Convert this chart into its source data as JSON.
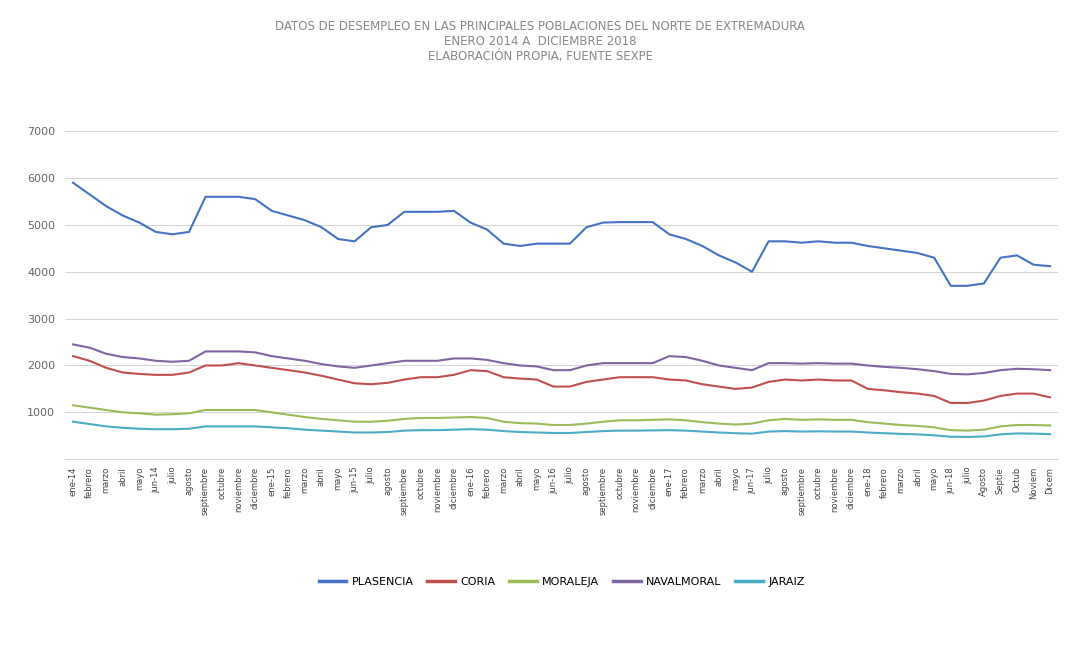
{
  "title": "DATOS DE DESEMPLEO EN LAS PRINCIPALES POBLACIONES DEL NORTE DE EXTREMADURA\nENERO 2014 A  DICIEMBRE 2018\nELABORACIÓN PROPIA, FUENTE SEXPE",
  "legend": [
    "PLASENCIA",
    "CORIA",
    "MORALEJA",
    "NAVALMORAL",
    "JARAIZ"
  ],
  "colors": {
    "PLASENCIA": "#4472C4",
    "CORIA": "#C0504D",
    "MORALEJA": "#9BBB59",
    "NAVALMORAL": "#8064A2",
    "JARAIZ": "#4BACC6"
  },
  "x_labels": [
    "ene-14",
    "febrero",
    "marzo",
    "abril",
    "mayo",
    "jun-14",
    "julio",
    "agosto",
    "septiembre",
    "octubre",
    "noviembre",
    "diciembre",
    "ene-15",
    "febrero",
    "marzo",
    "abril",
    "mayo",
    "jun-15",
    "julio",
    "agosto",
    "septiembre",
    "octubre",
    "noviembre",
    "diciembre",
    "ene-16",
    "febrero",
    "marzo",
    "abril",
    "mayo",
    "jun-16",
    "julio",
    "agosto",
    "septiembre",
    "octubre",
    "noviembre",
    "diciembre",
    "ene-17",
    "febrero",
    "marzo",
    "abril",
    "mayo",
    "jun-17",
    "julio",
    "agosto",
    "septiembre",
    "octubre",
    "noviembre",
    "diciembre",
    "ene-18",
    "febrero",
    "marzo",
    "abril",
    "mayo",
    "jun-18",
    "julio",
    "Agosto",
    "Septie",
    "Octub",
    "Noviem",
    "Dicem"
  ],
  "ylim": [
    0,
    7000
  ],
  "yticks": [
    0,
    1000,
    2000,
    3000,
    4000,
    5000,
    6000,
    7000
  ],
  "PLASENCIA": [
    5900,
    5650,
    5400,
    5200,
    5050,
    4850,
    4800,
    4850,
    5600,
    5600,
    5600,
    5550,
    5300,
    5200,
    5100,
    4950,
    4700,
    4650,
    4950,
    5000,
    5280,
    5280,
    5280,
    5300,
    5050,
    4900,
    4600,
    4550,
    4600,
    4600,
    4600,
    4950,
    5050,
    5060,
    5060,
    5060,
    4800,
    4700,
    4550,
    4350,
    4200,
    4000,
    4650,
    4650,
    4620,
    4650,
    4620,
    4620,
    4550,
    4500,
    4450,
    4400,
    4300,
    3700,
    3700,
    3750,
    4300,
    4350,
    4150,
    4120
  ],
  "CORIA": [
    2200,
    2100,
    1950,
    1850,
    1820,
    1800,
    1800,
    1850,
    2000,
    2000,
    2050,
    2000,
    1950,
    1900,
    1850,
    1780,
    1700,
    1620,
    1600,
    1630,
    1700,
    1750,
    1750,
    1800,
    1900,
    1880,
    1750,
    1720,
    1700,
    1550,
    1550,
    1650,
    1700,
    1750,
    1750,
    1750,
    1700,
    1680,
    1600,
    1550,
    1500,
    1530,
    1650,
    1700,
    1680,
    1700,
    1680,
    1680,
    1500,
    1470,
    1430,
    1400,
    1350,
    1200,
    1200,
    1250,
    1350,
    1400,
    1400,
    1320
  ],
  "MORALEJA": [
    1150,
    1100,
    1050,
    1000,
    980,
    950,
    960,
    980,
    1050,
    1050,
    1050,
    1050,
    1000,
    950,
    900,
    860,
    830,
    800,
    800,
    820,
    860,
    880,
    880,
    890,
    900,
    880,
    800,
    770,
    760,
    730,
    730,
    760,
    800,
    830,
    830,
    840,
    850,
    830,
    790,
    760,
    740,
    760,
    830,
    860,
    840,
    850,
    840,
    840,
    790,
    760,
    730,
    710,
    680,
    620,
    610,
    630,
    700,
    730,
    730,
    720
  ],
  "NAVALMORAL": [
    2450,
    2380,
    2250,
    2180,
    2150,
    2100,
    2080,
    2100,
    2300,
    2300,
    2300,
    2280,
    2200,
    2150,
    2100,
    2030,
    1980,
    1950,
    2000,
    2050,
    2100,
    2100,
    2100,
    2150,
    2150,
    2120,
    2050,
    2000,
    1980,
    1900,
    1900,
    2000,
    2050,
    2050,
    2050,
    2050,
    2200,
    2180,
    2100,
    2000,
    1950,
    1900,
    2050,
    2050,
    2040,
    2050,
    2040,
    2040,
    2000,
    1970,
    1950,
    1920,
    1880,
    1820,
    1810,
    1840,
    1900,
    1930,
    1920,
    1900
  ],
  "JARAIZ": [
    800,
    750,
    700,
    670,
    650,
    640,
    640,
    650,
    700,
    700,
    700,
    700,
    680,
    660,
    630,
    610,
    590,
    570,
    570,
    580,
    610,
    620,
    620,
    630,
    640,
    630,
    600,
    580,
    570,
    560,
    560,
    580,
    600,
    610,
    610,
    615,
    620,
    610,
    590,
    570,
    555,
    545,
    590,
    600,
    590,
    595,
    590,
    590,
    570,
    555,
    540,
    530,
    510,
    480,
    475,
    485,
    530,
    550,
    545,
    535
  ]
}
